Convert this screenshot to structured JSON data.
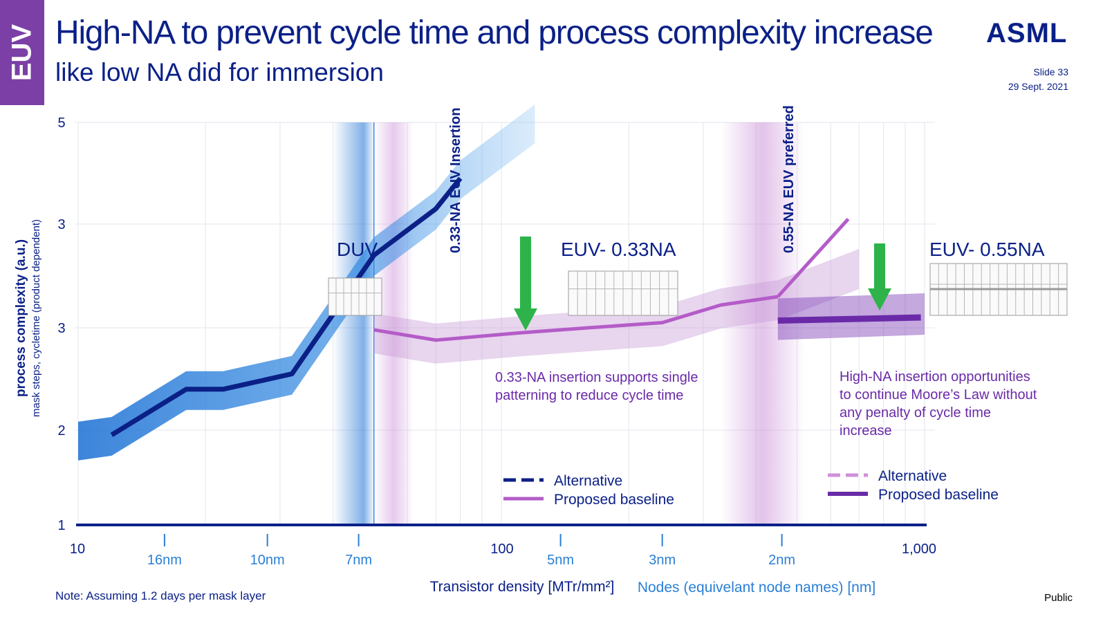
{
  "header": {
    "tab": "EUV",
    "title": "High-NA to prevent cycle time and process complexity increase",
    "subtitle": "like low NA did for immersion",
    "logo": "ASML",
    "slide": "Slide 33",
    "date": "29 Sept. 2021"
  },
  "footer": {
    "note": "Note: Assuming 1.2 days per mask layer",
    "classification": "Public"
  },
  "colors": {
    "navy": "#0b2087",
    "blue": "#1a6fd4",
    "purple": "#b45cc8",
    "dark_purple": "#6a2aa8",
    "green": "#2db34a",
    "node_label": "#2a7fd4"
  },
  "chart_data": {
    "type": "line",
    "xscale": "log",
    "xlim": [
      10,
      1000
    ],
    "x_ticks": [
      "10",
      "100",
      "1,000"
    ],
    "y_ticks": [
      "1",
      "2",
      "3",
      "3",
      "5"
    ],
    "xlabel": "Transistor density [MTr/mm²]",
    "xlabel2": "Nodes (equivelant node names) [nm]",
    "ylabel": "process complexity (a.u.)",
    "ylabel2": "mask steps, cycletime (product dependent)",
    "nodes": [
      {
        "label": "16nm",
        "x": 16
      },
      {
        "label": "10nm",
        "x": 28
      },
      {
        "label": "7nm",
        "x": 46
      },
      {
        "label": "5nm",
        "x": 138
      },
      {
        "label": "3nm",
        "x": 240
      },
      {
        "label": "2nm",
        "x": 460
      }
    ],
    "regions": [
      "DUV",
      "EUV- 0.33NA",
      "EUV- 0.55NA"
    ],
    "markers": [
      "0.33-NA EUV Insertion",
      "0.55-NA EUV preferred"
    ],
    "annotations": [
      "0.33-NA insertion supports single patterning to reduce cycle time",
      "High-NA insertion opportunities to continue Moore’s Law without any penalty of cycle time increase"
    ],
    "series": [
      {
        "name": "Alternative",
        "group": "EUV- 0.33NA",
        "x": [
          12,
          18,
          22,
          32,
          50,
          70,
          80
        ],
        "y": [
          1.95,
          2.4,
          2.4,
          2.55,
          3.7,
          4.15,
          4.45
        ]
      },
      {
        "name": "Proposed baseline",
        "group": "EUV- 0.33NA",
        "x": [
          50,
          70,
          110,
          160,
          240,
          330,
          450
        ],
        "y": [
          2.98,
          2.88,
          2.95,
          3.0,
          3.05,
          3.22,
          3.3
        ]
      },
      {
        "name": "Alternative",
        "group": "EUV- 0.55NA",
        "x": [
          450,
          660
        ],
        "y": [
          3.3,
          4.05
        ]
      },
      {
        "name": "Proposed baseline",
        "group": "EUV- 0.55NA",
        "x": [
          450,
          980
        ],
        "y": [
          3.07,
          3.1
        ]
      }
    ],
    "legend": [
      {
        "label": "Alternative",
        "group": "EUV- 0.33NA"
      },
      {
        "label": "Proposed baseline",
        "group": "EUV- 0.33NA"
      },
      {
        "label": "Alternative",
        "group": "EUV- 0.55NA"
      },
      {
        "label": "Proposed baseline",
        "group": "EUV- 0.55NA"
      }
    ]
  }
}
